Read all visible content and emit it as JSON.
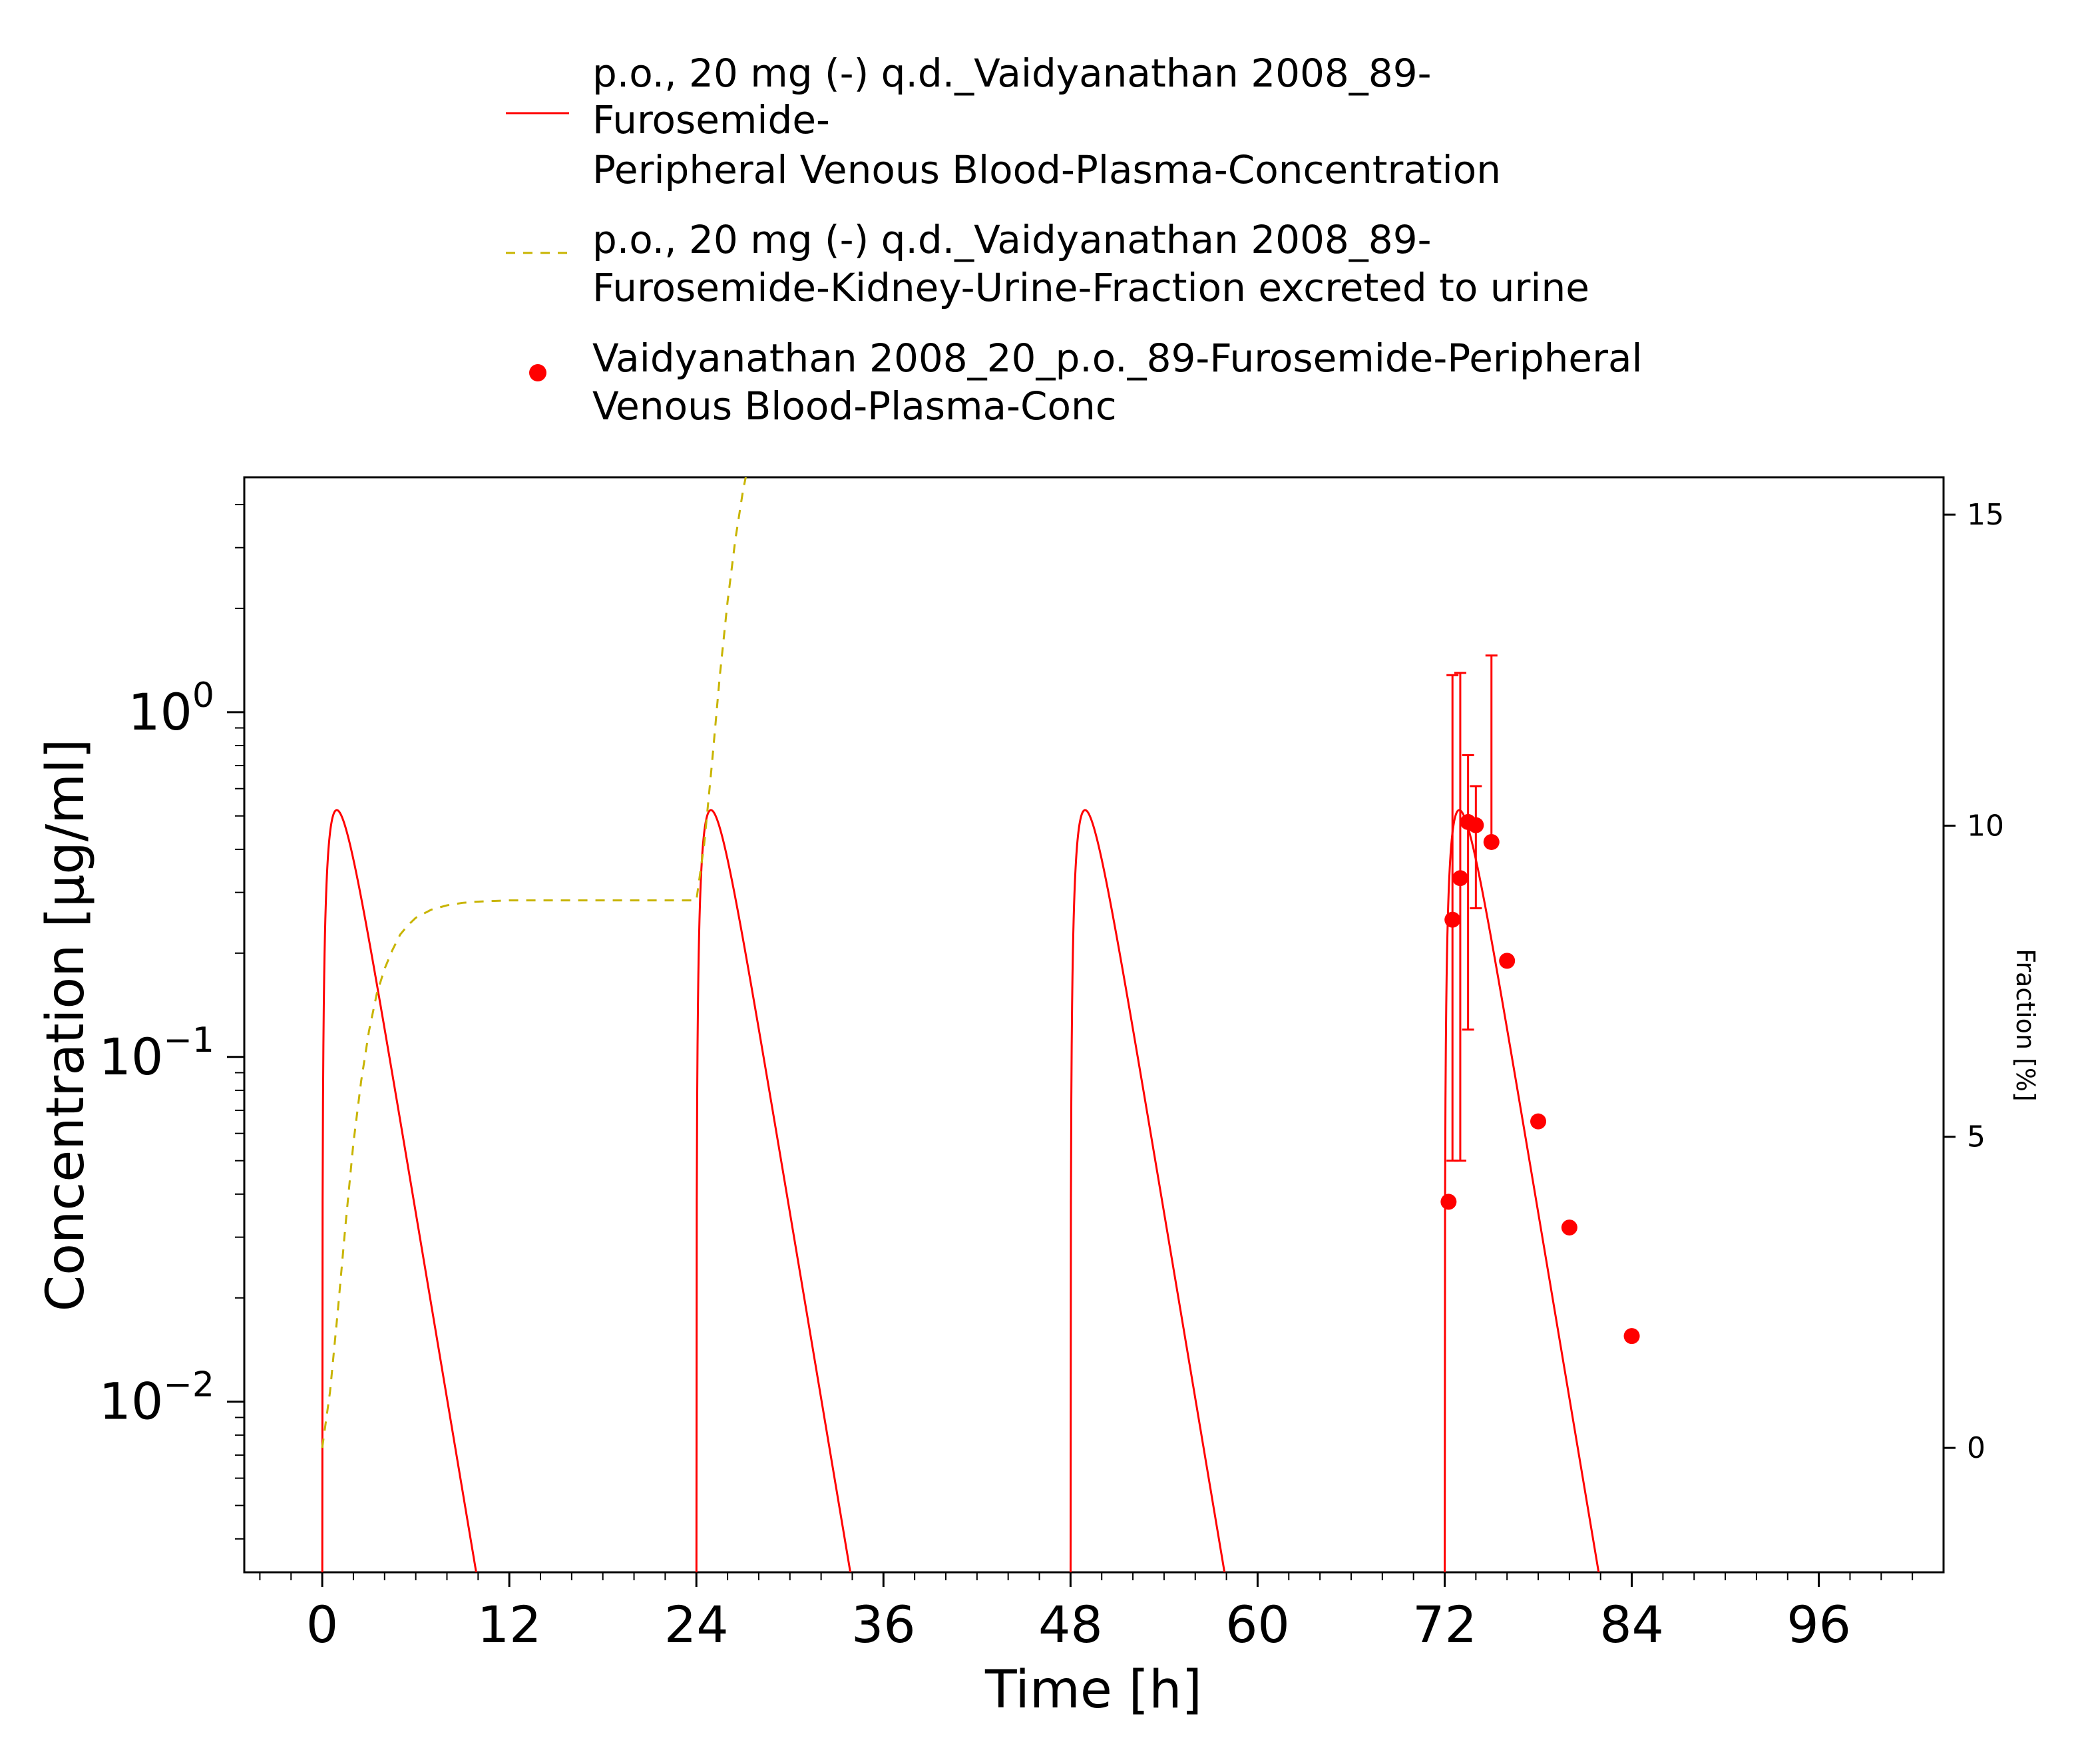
{
  "chart_data": {
    "type": "line",
    "title": "",
    "xlabel": "Time [h]",
    "ylabel": "Concentration [µg/ml]",
    "y2label": "Fraction [%]",
    "xlim": [
      -5,
      104
    ],
    "ylim": [
      0.0032,
      4.8
    ],
    "yscale": "log",
    "y2lim": [
      -2,
      15.6
    ],
    "xticks": [
      0,
      12,
      24,
      36,
      48,
      60,
      72,
      84,
      96
    ],
    "xtick_labels": [
      "0",
      "12",
      "24",
      "36",
      "48",
      "60",
      "72",
      "84",
      "96"
    ],
    "yticks": [
      {
        "value": 0.01,
        "base": "10",
        "exp": "−2"
      },
      {
        "value": 0.1,
        "base": "10",
        "exp": "−1"
      },
      {
        "value": 1,
        "base": "10",
        "exp": "0"
      }
    ],
    "y2ticks": [
      0,
      5,
      10,
      15
    ],
    "y2tick_labels": [
      "0",
      "5",
      "10",
      "15"
    ],
    "legend_position": "top",
    "grid": false,
    "series": [
      {
        "name": "p.o., 20 mg (-) q.d._Vaidyanathan 2008_89-Furosemide-Peripheral Venous Blood-Plasma-Concentration",
        "legend_lines": [
          "p.o., 20 mg (-) q.d._Vaidyanathan 2008_89-",
          "Furosemide-",
          "Peripheral Venous Blood-Plasma-Concentration"
        ],
        "type": "line",
        "axis": "left",
        "color": "#ff0000",
        "dash": "solid",
        "model": {
          "dose_times": [
            0,
            24,
            48,
            72
          ],
          "ka": 1.7,
          "ke": 0.62,
          "peak": 0.52
        }
      },
      {
        "name": "p.o., 20 mg (-) q.d._Vaidyanathan 2008_89-Furosemide-Kidney-Urine-Fraction excreted to urine",
        "legend_lines": [
          "p.o., 20 mg (-) q.d._Vaidyanathan 2008_89-",
          "Furosemide-Kidney-Urine-Fraction excreted to urine"
        ],
        "type": "line",
        "axis": "right",
        "color": "#c8b400",
        "dash": "dashed",
        "x": [
          0,
          0.5,
          1,
          1.5,
          2,
          2.5,
          3,
          3.5,
          4,
          4.5,
          5,
          5.5,
          6,
          7,
          8,
          9,
          10,
          12,
          16,
          20,
          24,
          24.5,
          25,
          25.5,
          26,
          26.5,
          27,
          27.5,
          28
        ],
        "y": [
          0,
          0.9,
          2.2,
          3.6,
          4.9,
          5.9,
          6.7,
          7.3,
          7.7,
          8.0,
          8.25,
          8.4,
          8.52,
          8.65,
          8.72,
          8.76,
          8.78,
          8.8,
          8.8,
          8.8,
          8.8,
          9.7,
          11.0,
          12.4,
          13.6,
          14.6,
          15.4,
          16.0,
          16.5
        ]
      },
      {
        "name": "Vaidyanathan 2008_20_p.o._89-Furosemide-Peripheral Venous Blood-Plasma-Conc",
        "legend_lines": [
          "Vaidyanathan 2008_20_p.o._89-Furosemide-Peripheral",
          "Venous Blood-Plasma-Conc"
        ],
        "type": "scatter",
        "axis": "left",
        "color": "#ff0000",
        "points": [
          {
            "x": 72.25,
            "y": 0.038,
            "err_low": null,
            "err_high": null
          },
          {
            "x": 72.5,
            "y": 0.25,
            "err_low": 0.05,
            "err_high": 1.28
          },
          {
            "x": 73.0,
            "y": 0.33,
            "err_low": 0.05,
            "err_high": 1.3
          },
          {
            "x": 73.5,
            "y": 0.48,
            "err_low": 0.12,
            "err_high": 0.75
          },
          {
            "x": 74.0,
            "y": 0.47,
            "err_low": 0.27,
            "err_high": 0.61
          },
          {
            "x": 75.0,
            "y": 0.42,
            "err_low": null,
            "err_high": 1.46
          },
          {
            "x": 76.0,
            "y": 0.19,
            "err_low": null,
            "err_high": null
          },
          {
            "x": 78.0,
            "y": 0.065,
            "err_low": null,
            "err_high": null
          },
          {
            "x": 80.0,
            "y": 0.032,
            "err_low": null,
            "err_high": null
          },
          {
            "x": 84.0,
            "y": 0.0155,
            "err_low": null,
            "err_high": null
          }
        ]
      }
    ]
  }
}
